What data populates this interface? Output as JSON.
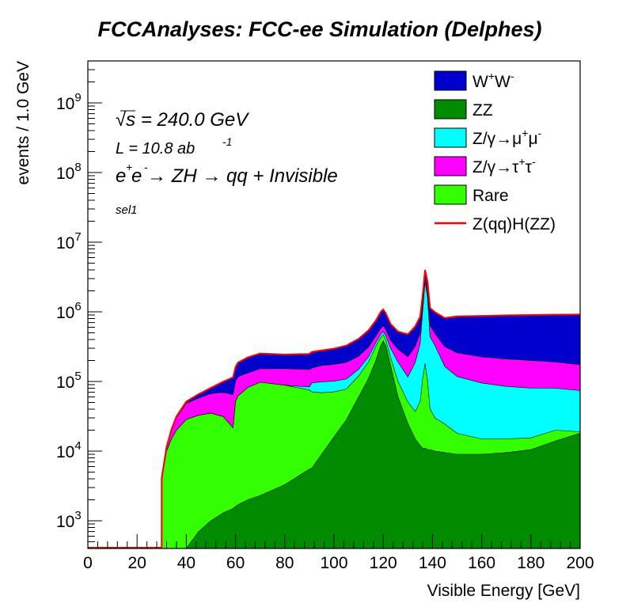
{
  "chart_data": {
    "type": "area",
    "stacked": true,
    "title": "FCCAnalyses: FCC-ee Simulation (Delphes)",
    "xlabel": "Visible Energy [GeV]",
    "ylabel": "events / 1.0 GeV",
    "xlim": [
      0,
      200
    ],
    "ylim": [
      400,
      4000000000
    ],
    "y_scale": "log",
    "x_ticks": [
      "0",
      "20",
      "40",
      "60",
      "80",
      "100",
      "120",
      "140",
      "160",
      "180",
      "200"
    ],
    "y_ticks": [
      {
        "value": 1000,
        "base": "10",
        "exp": "3"
      },
      {
        "value": 10000,
        "base": "10",
        "exp": "4"
      },
      {
        "value": 100000,
        "base": "10",
        "exp": "5"
      },
      {
        "value": 1000000,
        "base": "10",
        "exp": "6"
      },
      {
        "value": 10000000,
        "base": "10",
        "exp": "7"
      },
      {
        "value": 100000000,
        "base": "10",
        "exp": "8"
      },
      {
        "value": 1000000000,
        "base": "10",
        "exp": "9"
      }
    ],
    "annotations": {
      "sqrt_s": "√s = 240.0 GeV",
      "luminosity": "L = 10.8 ab",
      "luminosity_exp": "-1",
      "process": "e e  → ZH → qq + Invisible",
      "selection": "sel1"
    },
    "x": [
      30,
      32,
      34,
      36,
      40,
      45,
      50,
      55,
      59,
      60,
      61,
      65,
      70,
      80,
      90,
      91,
      95,
      100,
      105,
      110,
      114,
      117,
      119,
      120,
      121,
      123,
      126,
      130,
      133,
      135,
      136,
      137,
      138,
      139,
      141,
      145,
      150,
      160,
      170,
      180,
      190,
      200
    ],
    "series": [
      {
        "name": "ZZ",
        "color": "#008b00",
        "values": [
          0,
          0,
          0,
          0,
          380,
          700,
          1000,
          1300,
          1500,
          1600,
          1700,
          2000,
          2300,
          3300,
          5500,
          5700,
          9000,
          16000,
          28000,
          60000,
          110000,
          200000,
          330000,
          380000,
          330000,
          170000,
          60000,
          25000,
          15000,
          12000,
          11000,
          11000,
          10500,
          10500,
          10000,
          9500,
          9000,
          9000,
          9500,
          10500,
          14000,
          18000
        ]
      },
      {
        "name": "Rare",
        "color": "#33ff00",
        "values": [
          3800,
          10000,
          15000,
          20000,
          28000,
          32000,
          34000,
          30000,
          20000,
          50000,
          60000,
          80000,
          95000,
          85000,
          70000,
          65000,
          60000,
          55000,
          50000,
          60000,
          80000,
          120000,
          100000,
          90000,
          70000,
          50000,
          40000,
          26000,
          22000,
          40000,
          100000,
          170000,
          90000,
          30000,
          20000,
          15000,
          9000,
          6000,
          5500,
          5000,
          6000,
          1000
        ]
      },
      {
        "name": "Z/γ→μ⁺μ⁻",
        "color": "#00ffff",
        "values": [
          0,
          0,
          0,
          0,
          0,
          0,
          0,
          0,
          0,
          0,
          0,
          0,
          0,
          0,
          8000,
          25000,
          30000,
          30000,
          30000,
          30000,
          35000,
          40000,
          50000,
          50000,
          60000,
          80000,
          90000,
          65000,
          150000,
          300000,
          900000,
          2500000,
          1500000,
          400000,
          300000,
          140000,
          100000,
          80000,
          70000,
          65000,
          60000,
          55000
        ]
      },
      {
        "name": "Z/γ→τ⁺τ⁻",
        "color": "#ff00ff",
        "values": [
          300,
          1500,
          5000,
          10000,
          20000,
          25000,
          32000,
          38000,
          43000,
          50000,
          55000,
          50000,
          55000,
          65000,
          65000,
          60000,
          70000,
          75000,
          80000,
          80000,
          85000,
          90000,
          100000,
          110000,
          100000,
          90000,
          100000,
          110000,
          130000,
          150000,
          200000,
          400000,
          300000,
          200000,
          160000,
          150000,
          140000,
          130000,
          125000,
          120000,
          110000,
          100000
        ]
      },
      {
        "name": "W⁺W⁻",
        "color": "#0000cc",
        "values": [
          0,
          0,
          500,
          1500,
          3000,
          8000,
          14000,
          30000,
          50000,
          60000,
          70000,
          90000,
          100000,
          90000,
          100000,
          110000,
          110000,
          120000,
          140000,
          180000,
          230000,
          300000,
          420000,
          450000,
          400000,
          280000,
          230000,
          250000,
          300000,
          350000,
          500000,
          900000,
          800000,
          500000,
          500000,
          500000,
          600000,
          650000,
          680000,
          700000,
          720000,
          740000
        ]
      },
      {
        "name": "Z(qq)H(ZZ)",
        "color": "#ff0000",
        "line_only": true,
        "values": [
          10,
          10,
          10,
          10,
          10,
          10,
          10,
          10,
          10,
          10,
          10,
          10,
          10,
          10,
          10,
          10,
          10,
          10,
          10,
          10,
          10,
          10,
          10,
          10,
          10,
          10,
          10,
          10,
          10,
          10,
          10,
          10,
          10,
          10,
          10,
          10,
          10,
          10,
          10,
          10,
          10,
          10
        ]
      }
    ],
    "legend": {
      "position": "top-right",
      "entries": [
        {
          "label": "W",
          "sup1": "+",
          "label2": "W",
          "sup2": "-",
          "color": "#0000cc",
          "kind": "box"
        },
        {
          "label": "ZZ",
          "color": "#008b00",
          "kind": "box"
        },
        {
          "label": "Z/γ→μ",
          "sup1": "+",
          "label2": "μ",
          "sup2": "-",
          "color": "#00ffff",
          "kind": "box"
        },
        {
          "label": "Z/γ→τ",
          "sup1": "+",
          "label2": "τ",
          "sup2": "-",
          "color": "#ff00ff",
          "kind": "box"
        },
        {
          "label": "Rare",
          "color": "#33ff00",
          "kind": "box"
        },
        {
          "label": "Z(qq)H(ZZ)",
          "color": "#ff0000",
          "kind": "line"
        }
      ]
    },
    "grid": false
  }
}
